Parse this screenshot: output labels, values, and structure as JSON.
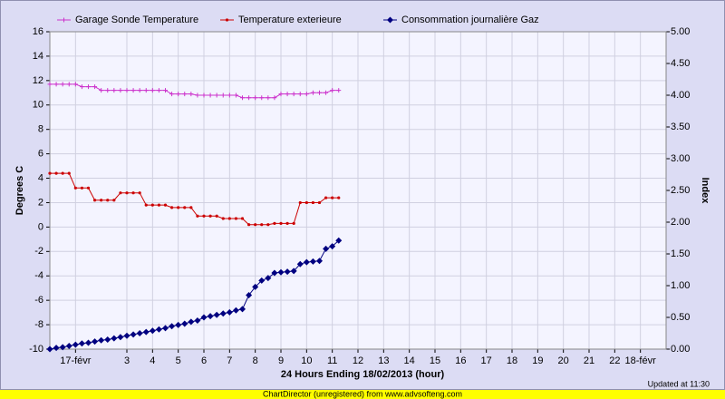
{
  "chart_data": {
    "type": "line",
    "x": [
      0,
      0.25,
      0.5,
      0.75,
      1,
      1.25,
      1.5,
      1.75,
      2,
      2.25,
      2.5,
      2.75,
      3,
      3.25,
      3.5,
      3.75,
      4,
      4.25,
      4.5,
      4.75,
      5,
      5.25,
      5.5,
      5.75,
      6,
      6.25,
      6.5,
      6.75,
      7,
      7.25,
      7.5,
      7.75,
      8,
      8.25,
      8.5,
      8.75,
      9,
      9.25,
      9.5,
      9.75,
      10,
      10.25,
      10.5,
      10.75,
      11,
      11.25
    ],
    "series": [
      {
        "name": "Garage Sonde Temperature",
        "color": "#cc33cc",
        "marker": "plus",
        "values": [
          11.7,
          11.7,
          11.7,
          11.7,
          11.7,
          11.5,
          11.5,
          11.5,
          11.2,
          11.2,
          11.2,
          11.2,
          11.2,
          11.2,
          11.2,
          11.2,
          11.2,
          11.2,
          11.2,
          10.9,
          10.9,
          10.9,
          10.9,
          10.8,
          10.8,
          10.8,
          10.8,
          10.8,
          10.8,
          10.8,
          10.6,
          10.6,
          10.6,
          10.6,
          10.6,
          10.6,
          10.9,
          10.9,
          10.9,
          10.9,
          10.9,
          11.0,
          11.0,
          11.0,
          11.2,
          11.2
        ]
      },
      {
        "name": "Temperature exterieure",
        "color": "#cc0000",
        "marker": "dot",
        "values": [
          4.4,
          4.4,
          4.4,
          4.4,
          3.2,
          3.2,
          3.2,
          2.2,
          2.2,
          2.2,
          2.2,
          2.8,
          2.8,
          2.8,
          2.8,
          1.8,
          1.8,
          1.8,
          1.8,
          1.6,
          1.6,
          1.6,
          1.6,
          0.9,
          0.9,
          0.9,
          0.9,
          0.7,
          0.7,
          0.7,
          0.7,
          0.2,
          0.2,
          0.2,
          0.2,
          0.3,
          0.3,
          0.3,
          0.3,
          2.0,
          2.0,
          2.0,
          2.0,
          2.4,
          2.4,
          2.4
        ]
      },
      {
        "name": "Consommation journalière Gaz",
        "color": "#000080",
        "marker": "diamond",
        "axis": "y2",
        "values": [
          0.0,
          0.02,
          0.03,
          0.05,
          0.07,
          0.09,
          0.1,
          0.12,
          0.14,
          0.15,
          0.17,
          0.19,
          0.21,
          0.23,
          0.25,
          0.27,
          0.29,
          0.31,
          0.33,
          0.36,
          0.38,
          0.4,
          0.43,
          0.45,
          0.5,
          0.52,
          0.54,
          0.56,
          0.58,
          0.61,
          0.63,
          0.85,
          0.98,
          1.08,
          1.12,
          1.2,
          1.21,
          1.22,
          1.23,
          1.34,
          1.37,
          1.38,
          1.39,
          1.58,
          1.62,
          1.71
        ]
      }
    ],
    "xlabel": "24 Hours Ending 18/02/2013 (hour)",
    "ylabel": "Degrees C",
    "y2label": "Index",
    "xlim": [
      0,
      24
    ],
    "xticks": [
      {
        "value": 1,
        "label": "17-févr"
      },
      3,
      4,
      5,
      6,
      7,
      8,
      9,
      10,
      11,
      12,
      13,
      14,
      15,
      16,
      17,
      18,
      19,
      20,
      21,
      22,
      {
        "value": 23,
        "label": "18-févr"
      }
    ],
    "ylim": [
      -10,
      16
    ],
    "yticks": [
      -10,
      -8,
      -6,
      -4,
      -2,
      0,
      2,
      4,
      6,
      8,
      10,
      12,
      14,
      16
    ],
    "y2lim": [
      0,
      5
    ],
    "y2ticks": [
      {
        "value": 0,
        "label": "0.00"
      },
      {
        "value": 0.5,
        "label": "0.50"
      },
      {
        "value": 1,
        "label": "1.00"
      },
      {
        "value": 1.5,
        "label": "1.50"
      },
      {
        "value": 2,
        "label": "2.00"
      },
      {
        "value": 2.5,
        "label": "2.50"
      },
      {
        "value": 3,
        "label": "3.00"
      },
      {
        "value": 3.5,
        "label": "3.50"
      },
      {
        "value": 4,
        "label": "4.00"
      },
      {
        "value": 4.5,
        "label": "4.50"
      },
      {
        "value": 5,
        "label": "5.00"
      }
    ],
    "grid": true,
    "legend": "top",
    "annotation": "Updated at 11:30",
    "footer": "ChartDirector (unregistered) from www.advsofteng.com"
  }
}
